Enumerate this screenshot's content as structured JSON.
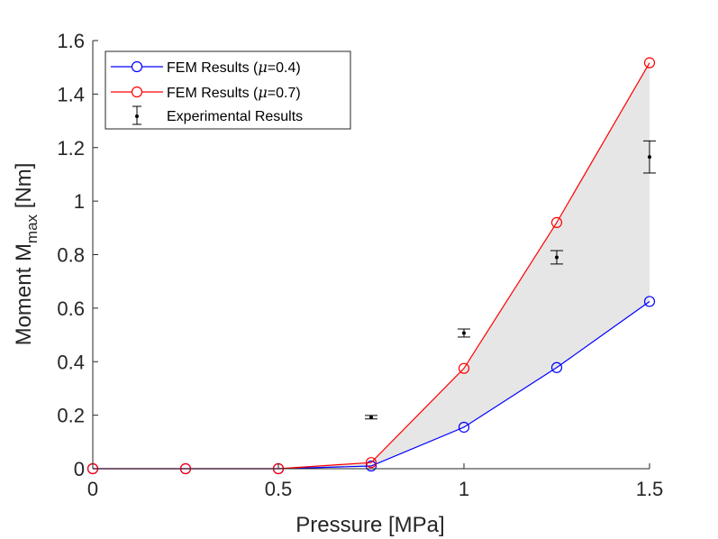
{
  "chart_data": {
    "type": "line",
    "xlabel": "Pressure [MPa]",
    "ylabel": "Moment M",
    "ylabel_sub": "max",
    "xlim": [
      0,
      1.5
    ],
    "ylim": [
      0,
      1.6
    ],
    "x_ticks": [
      0,
      0.5,
      1,
      1.5
    ],
    "x_tick_labels": [
      "0",
      "0.5",
      "1",
      "1.5"
    ],
    "y_ticks": [
      0,
      0.2,
      0.4,
      0.6,
      0.8,
      1.0,
      1.2,
      1.4,
      1.6
    ],
    "y_tick_labels": [
      "0",
      "0.2",
      "0.4",
      "0.6",
      "0.8",
      "1",
      "1.2",
      "1.4",
      "1.6"
    ],
    "grid": false,
    "legend_position": "top-left",
    "shaded_region": {
      "between": [
        "FEM Results (μ=0.4)",
        "FEM Results (μ=0.7)"
      ],
      "color": "#e6e6e6"
    },
    "series": [
      {
        "name": "FEM Results (μ=0.4)",
        "legend_prefix": "FEM Results (",
        "legend_mu": "μ",
        "legend_suffix": "=0.4)",
        "color": "#0000ff",
        "marker": "circle",
        "x": [
          0,
          0.25,
          0.5,
          0.75,
          1.0,
          1.25,
          1.5
        ],
        "y": [
          0,
          0,
          0,
          0.01,
          0.155,
          0.378,
          0.625
        ]
      },
      {
        "name": "FEM Results (μ=0.7)",
        "legend_prefix": "FEM Results (",
        "legend_mu": "μ",
        "legend_suffix": "=0.7)",
        "color": "#ff0000",
        "marker": "circle",
        "x": [
          0,
          0.25,
          0.5,
          0.75,
          1.0,
          1.25,
          1.5
        ],
        "y": [
          0,
          0,
          0,
          0.023,
          0.375,
          0.92,
          1.517
        ]
      },
      {
        "name": "Experimental Results",
        "color": "#000000",
        "marker": "dot-errorbar",
        "x": [
          0.75,
          1.0,
          1.25,
          1.5
        ],
        "y": [
          0.192,
          0.507,
          0.79,
          1.165
        ],
        "err_low": [
          0.186,
          0.492,
          0.765,
          1.105
        ],
        "err_high": [
          0.199,
          0.522,
          0.815,
          1.225
        ]
      }
    ]
  }
}
